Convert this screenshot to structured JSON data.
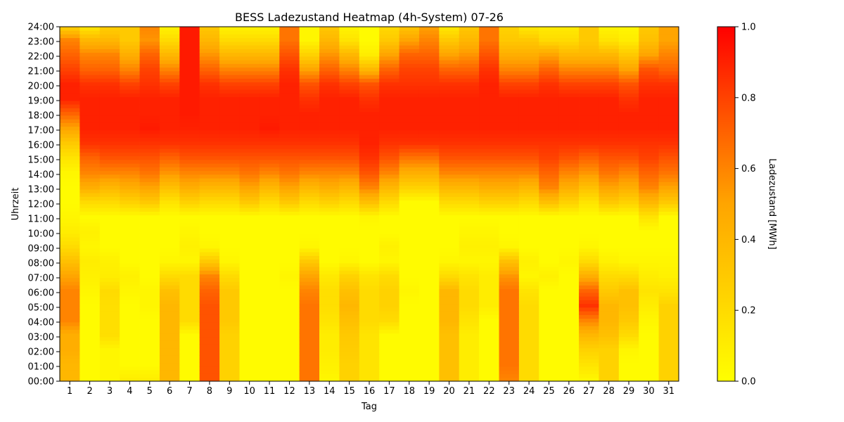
{
  "chart_data": {
    "type": "heatmap",
    "title": "BESS Ladezustand Heatmap (4h-System) 07-26",
    "xlabel": "Tag",
    "ylabel": "Uhrzeit",
    "colorbar_label": "Ladezustand [MWh]",
    "x_categories": [
      "1",
      "2",
      "3",
      "4",
      "5",
      "6",
      "7",
      "8",
      "9",
      "10",
      "11",
      "12",
      "13",
      "14",
      "15",
      "16",
      "17",
      "18",
      "19",
      "20",
      "21",
      "22",
      "23",
      "24",
      "25",
      "26",
      "27",
      "28",
      "29",
      "30",
      "31"
    ],
    "y_tick_labels": [
      "00:00",
      "01:00",
      "02:00",
      "03:00",
      "04:00",
      "05:00",
      "06:00",
      "07:00",
      "08:00",
      "09:00",
      "10:00",
      "11:00",
      "12:00",
      "13:00",
      "14:00",
      "15:00",
      "16:00",
      "17:00",
      "18:00",
      "19:00",
      "20:00",
      "21:00",
      "22:00",
      "23:00",
      "24:00"
    ],
    "y_range_hours": [
      0,
      24
    ],
    "value_range": [
      0.0,
      1.0
    ],
    "colorbar_ticks": [
      "0.0",
      "0.2",
      "0.4",
      "0.6",
      "0.8",
      "1.0"
    ],
    "colormap": [
      "#ffff00",
      "#ffa500",
      "#ff0000"
    ],
    "hours_resolution": 1,
    "values": [
      [
        0.4,
        0.4,
        0.45,
        0.45,
        0.6,
        0.6,
        0.6,
        0.5,
        0.35,
        0.2,
        0.1,
        0.05,
        0.02,
        0.02,
        0.05,
        0.15,
        0.3,
        0.5,
        0.7,
        0.9,
        0.9,
        0.8,
        0.7,
        0.6,
        0.2
      ],
      [
        0.02,
        0.02,
        0.02,
        0.02,
        0.02,
        0.02,
        0.05,
        0.08,
        0.1,
        0.05,
        0.08,
        0.02,
        0.2,
        0.45,
        0.6,
        0.7,
        0.85,
        0.9,
        0.9,
        0.9,
        0.85,
        0.7,
        0.6,
        0.4,
        0.1
      ],
      [
        0.05,
        0.05,
        0.05,
        0.18,
        0.18,
        0.18,
        0.2,
        0.1,
        0.08,
        0.02,
        0.02,
        0.02,
        0.2,
        0.4,
        0.6,
        0.75,
        0.85,
        0.9,
        0.9,
        0.9,
        0.85,
        0.7,
        0.6,
        0.4,
        0.25
      ],
      [
        0.1,
        0.02,
        0.02,
        0.02,
        0.02,
        0.02,
        0.05,
        0.08,
        0.02,
        0.02,
        0.02,
        0.02,
        0.25,
        0.45,
        0.6,
        0.75,
        0.85,
        0.9,
        0.9,
        0.9,
        0.8,
        0.6,
        0.45,
        0.3,
        0.3
      ],
      [
        0.1,
        0.02,
        0.02,
        0.02,
        0.02,
        0.05,
        0.05,
        0.02,
        0.02,
        0.02,
        0.02,
        0.02,
        0.3,
        0.5,
        0.65,
        0.75,
        0.85,
        0.92,
        0.9,
        0.9,
        0.85,
        0.8,
        0.7,
        0.55,
        0.6
      ],
      [
        0.4,
        0.4,
        0.4,
        0.4,
        0.4,
        0.4,
        0.35,
        0.2,
        0.05,
        0.02,
        0.02,
        0.02,
        0.15,
        0.35,
        0.55,
        0.7,
        0.85,
        0.9,
        0.9,
        0.9,
        0.8,
        0.6,
        0.4,
        0.2,
        0.05
      ],
      [
        0.02,
        0.02,
        0.02,
        0.02,
        0.2,
        0.2,
        0.2,
        0.2,
        0.05,
        0.08,
        0.05,
        0.02,
        0.25,
        0.45,
        0.6,
        0.75,
        0.85,
        0.9,
        0.92,
        0.92,
        0.92,
        0.92,
        0.92,
        0.92,
        0.92
      ],
      [
        0.75,
        0.75,
        0.75,
        0.75,
        0.75,
        0.75,
        0.7,
        0.6,
        0.3,
        0.05,
        0.02,
        0.02,
        0.2,
        0.4,
        0.6,
        0.75,
        0.85,
        0.9,
        0.9,
        0.9,
        0.85,
        0.7,
        0.55,
        0.4,
        0.3
      ],
      [
        0.25,
        0.25,
        0.25,
        0.25,
        0.3,
        0.3,
        0.3,
        0.2,
        0.05,
        0.02,
        0.02,
        0.02,
        0.2,
        0.4,
        0.6,
        0.75,
        0.85,
        0.9,
        0.9,
        0.9,
        0.8,
        0.6,
        0.4,
        0.2,
        0.05
      ],
      [
        0.02,
        0.02,
        0.02,
        0.02,
        0.02,
        0.02,
        0.02,
        0.02,
        0.02,
        0.02,
        0.02,
        0.02,
        0.3,
        0.5,
        0.65,
        0.75,
        0.85,
        0.9,
        0.9,
        0.9,
        0.8,
        0.6,
        0.4,
        0.2,
        0.05
      ],
      [
        0.02,
        0.02,
        0.02,
        0.02,
        0.02,
        0.02,
        0.02,
        0.02,
        0.02,
        0.02,
        0.02,
        0.02,
        0.2,
        0.4,
        0.6,
        0.75,
        0.85,
        0.92,
        0.9,
        0.9,
        0.8,
        0.6,
        0.4,
        0.2,
        0.05
      ],
      [
        0.02,
        0.02,
        0.02,
        0.02,
        0.02,
        0.02,
        0.02,
        0.05,
        0.02,
        0.02,
        0.02,
        0.02,
        0.3,
        0.5,
        0.65,
        0.75,
        0.85,
        0.9,
        0.9,
        0.9,
        0.9,
        0.85,
        0.75,
        0.65,
        0.65
      ],
      [
        0.65,
        0.65,
        0.65,
        0.65,
        0.65,
        0.65,
        0.6,
        0.5,
        0.3,
        0.05,
        0.02,
        0.02,
        0.2,
        0.4,
        0.6,
        0.75,
        0.85,
        0.9,
        0.9,
        0.85,
        0.75,
        0.5,
        0.25,
        0.05,
        0.05
      ],
      [
        0.05,
        0.08,
        0.1,
        0.1,
        0.15,
        0.18,
        0.18,
        0.12,
        0.02,
        0.02,
        0.02,
        0.02,
        0.25,
        0.45,
        0.6,
        0.75,
        0.85,
        0.9,
        0.9,
        0.9,
        0.85,
        0.7,
        0.55,
        0.4,
        0.3
      ],
      [
        0.25,
        0.25,
        0.28,
        0.3,
        0.35,
        0.4,
        0.35,
        0.25,
        0.05,
        0.02,
        0.02,
        0.02,
        0.2,
        0.4,
        0.6,
        0.75,
        0.85,
        0.9,
        0.9,
        0.9,
        0.8,
        0.6,
        0.4,
        0.15,
        0.05
      ],
      [
        0.15,
        0.15,
        0.15,
        0.15,
        0.2,
        0.2,
        0.2,
        0.15,
        0.02,
        0.02,
        0.02,
        0.05,
        0.35,
        0.6,
        0.75,
        0.85,
        0.9,
        0.9,
        0.9,
        0.85,
        0.75,
        0.4,
        0.1,
        0.02,
        0.02
      ],
      [
        0.02,
        0.02,
        0.02,
        0.02,
        0.2,
        0.25,
        0.25,
        0.2,
        0.05,
        0.08,
        0.02,
        0.02,
        0.2,
        0.4,
        0.6,
        0.75,
        0.85,
        0.9,
        0.9,
        0.9,
        0.85,
        0.7,
        0.5,
        0.3,
        0.2
      ],
      [
        0.02,
        0.02,
        0.02,
        0.02,
        0.02,
        0.02,
        0.05,
        0.02,
        0.02,
        0.02,
        0.02,
        0.02,
        0.02,
        0.25,
        0.45,
        0.65,
        0.85,
        0.9,
        0.9,
        0.9,
        0.85,
        0.8,
        0.7,
        0.5,
        0.3
      ],
      [
        0.02,
        0.02,
        0.02,
        0.02,
        0.02,
        0.02,
        0.02,
        0.02,
        0.02,
        0.02,
        0.02,
        0.02,
        0.02,
        0.25,
        0.45,
        0.65,
        0.85,
        0.9,
        0.9,
        0.9,
        0.85,
        0.8,
        0.7,
        0.6,
        0.5
      ],
      [
        0.35,
        0.35,
        0.35,
        0.35,
        0.4,
        0.4,
        0.4,
        0.2,
        0.05,
        0.02,
        0.02,
        0.02,
        0.2,
        0.4,
        0.6,
        0.75,
        0.85,
        0.9,
        0.9,
        0.9,
        0.85,
        0.7,
        0.5,
        0.3,
        0.1
      ],
      [
        0.1,
        0.1,
        0.1,
        0.1,
        0.15,
        0.2,
        0.2,
        0.15,
        0.05,
        0.08,
        0.05,
        0.02,
        0.2,
        0.4,
        0.6,
        0.75,
        0.85,
        0.9,
        0.9,
        0.9,
        0.85,
        0.7,
        0.55,
        0.4,
        0.3
      ],
      [
        0.02,
        0.02,
        0.02,
        0.02,
        0.02,
        0.1,
        0.1,
        0.1,
        0.05,
        0.08,
        0.05,
        0.02,
        0.25,
        0.45,
        0.6,
        0.75,
        0.85,
        0.9,
        0.9,
        0.9,
        0.9,
        0.85,
        0.75,
        0.65,
        0.65
      ],
      [
        0.6,
        0.65,
        0.65,
        0.65,
        0.65,
        0.65,
        0.65,
        0.55,
        0.35,
        0.05,
        0.02,
        0.02,
        0.25,
        0.45,
        0.6,
        0.75,
        0.85,
        0.9,
        0.9,
        0.9,
        0.8,
        0.6,
        0.45,
        0.3,
        0.25
      ],
      [
        0.2,
        0.2,
        0.2,
        0.2,
        0.2,
        0.2,
        0.15,
        0.05,
        0.08,
        0.02,
        0.02,
        0.02,
        0.2,
        0.4,
        0.6,
        0.75,
        0.85,
        0.9,
        0.9,
        0.9,
        0.8,
        0.6,
        0.45,
        0.3,
        0.1
      ],
      [
        0.02,
        0.02,
        0.02,
        0.02,
        0.02,
        0.02,
        0.02,
        0.08,
        0.02,
        0.02,
        0.02,
        0.02,
        0.35,
        0.6,
        0.7,
        0.8,
        0.85,
        0.9,
        0.9,
        0.9,
        0.85,
        0.7,
        0.5,
        0.2,
        0.1
      ],
      [
        0.02,
        0.02,
        0.02,
        0.02,
        0.02,
        0.02,
        0.02,
        0.02,
        0.05,
        0.02,
        0.02,
        0.02,
        0.25,
        0.45,
        0.6,
        0.75,
        0.85,
        0.9,
        0.9,
        0.9,
        0.8,
        0.6,
        0.4,
        0.2,
        0.1
      ],
      [
        0.05,
        0.15,
        0.25,
        0.4,
        0.6,
        0.85,
        0.7,
        0.45,
        0.2,
        0.05,
        0.02,
        0.02,
        0.15,
        0.35,
        0.55,
        0.7,
        0.85,
        0.9,
        0.9,
        0.9,
        0.8,
        0.6,
        0.4,
        0.3,
        0.3
      ],
      [
        0.25,
        0.25,
        0.25,
        0.35,
        0.4,
        0.4,
        0.3,
        0.2,
        0.08,
        0.02,
        0.02,
        0.02,
        0.3,
        0.5,
        0.65,
        0.75,
        0.85,
        0.9,
        0.9,
        0.9,
        0.8,
        0.6,
        0.4,
        0.15,
        0.05
      ],
      [
        0.02,
        0.02,
        0.05,
        0.2,
        0.3,
        0.35,
        0.35,
        0.2,
        0.05,
        0.02,
        0.02,
        0.02,
        0.25,
        0.45,
        0.6,
        0.75,
        0.85,
        0.9,
        0.9,
        0.85,
        0.75,
        0.5,
        0.3,
        0.1,
        0.05
      ],
      [
        0.02,
        0.02,
        0.02,
        0.02,
        0.05,
        0.1,
        0.15,
        0.1,
        0.05,
        0.02,
        0.02,
        0.15,
        0.4,
        0.6,
        0.7,
        0.8,
        0.85,
        0.9,
        0.9,
        0.9,
        0.85,
        0.75,
        0.5,
        0.35,
        0.3
      ],
      [
        0.25,
        0.25,
        0.25,
        0.25,
        0.25,
        0.25,
        0.15,
        0.08,
        0.05,
        0.02,
        0.02,
        0.02,
        0.3,
        0.5,
        0.65,
        0.75,
        0.85,
        0.9,
        0.9,
        0.9,
        0.85,
        0.7,
        0.6,
        0.5,
        0.5
      ]
    ]
  }
}
